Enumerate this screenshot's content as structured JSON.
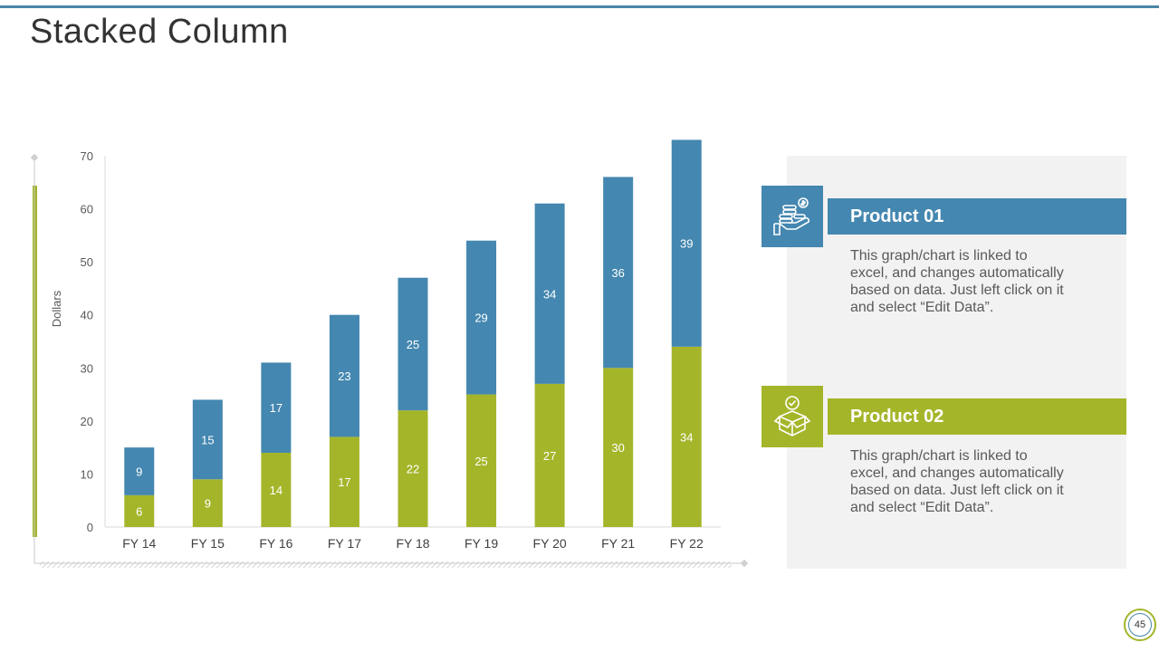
{
  "slide": {
    "title": "Stacked Column",
    "page_number": "45"
  },
  "colors": {
    "series_blue": "#4487b0",
    "series_green": "#a5b52a",
    "panel_bg": "#f2f2f2"
  },
  "chart_data": {
    "type": "bar",
    "stacked": true,
    "categories": [
      "FY 14",
      "FY 15",
      "FY 16",
      "FY 17",
      "FY 18",
      "FY 19",
      "FY 20",
      "FY 21",
      "FY 22"
    ],
    "series": [
      {
        "name": "Product 02",
        "color": "#a5b52a",
        "values": [
          6,
          9,
          14,
          17,
          22,
          25,
          27,
          30,
          34
        ]
      },
      {
        "name": "Product 01",
        "color": "#4487b0",
        "values": [
          9,
          15,
          17,
          23,
          25,
          29,
          34,
          36,
          39
        ]
      }
    ],
    "ylabel": "Dollars",
    "ylim": [
      0,
      70
    ],
    "yticks": [
      0,
      10,
      20,
      30,
      40,
      50,
      60,
      70
    ],
    "grid": false,
    "data_labels": true
  },
  "legend": {
    "product1": {
      "label": "Product 01",
      "icon": "money-hand-icon",
      "description": "This graph/chart is linked to excel, and changes automatically based on data. Just left click on it and select “Edit Data”."
    },
    "product2": {
      "label": "Product 02",
      "icon": "box-check-icon",
      "description": "This graph/chart is linked to excel, and changes automatically based on data. Just left click on it and select “Edit Data”."
    }
  }
}
